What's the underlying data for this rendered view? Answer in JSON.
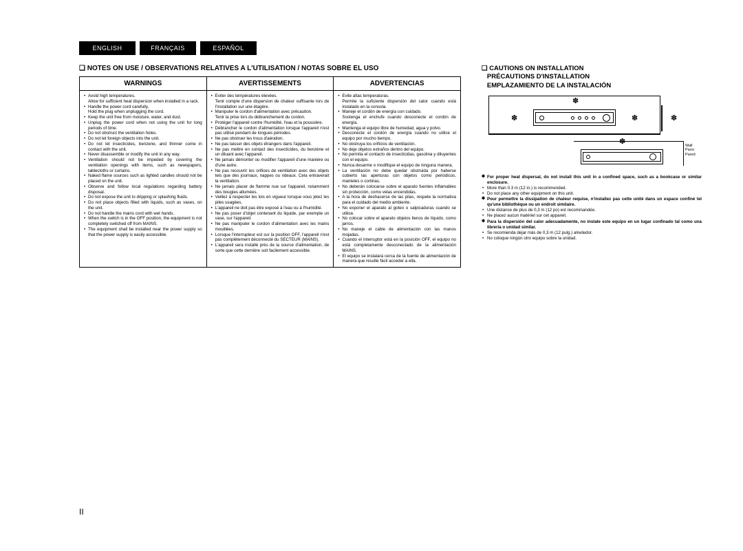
{
  "tabs": {
    "en": "ENGLISH",
    "fr": "FRANÇAIS",
    "es": "ESPAÑOL"
  },
  "notes_title": "NOTES ON USE / OBSERVATIONS RELATIVES A L'UTILISATION / NOTAS SOBRE EL USO",
  "headers": {
    "en": "WARNINGS",
    "fr": "AVERTISSEMENTS",
    "es": "ADVERTENCIAS"
  },
  "warnings_en": [
    "Avoid high temperatures.",
    "Allow for sufficient heat dispersion when installed in a rack.",
    "Handle the power cord carefully.",
    "Hold the plug when unplugging the cord.",
    "Keep the unit free from moisture, water, and dust.",
    "Unplug the power cord when not using the unit for long periods of time.",
    "Do not obstruct the ventilation holes.",
    "Do not let foreign objects into the unit.",
    "Do not let insecticides, benzene, and thinner come in contact with the unit.",
    "Never disassemble or modify the unit in any way.",
    "Ventilation should not be impeded by covering the ventilation openings with items, such as newspapers, tablecloths or curtains.",
    "Naked flame sources such as lighted candles should not be placed on the unit.",
    "Observe and follow local regulations regarding battery disposal.",
    "Do not expose the unit to dripping or splashing fluids.",
    "Do not place objects filled with liquids, such as vases, on the unit.",
    "Do not handle the mains cord with wet hands.",
    "When the switch is in the OFF position, the equipment is not completely switched off from MAINS.",
    "The equipment shall be installed near the power supply so that the power supply is easily accessible."
  ],
  "warnings_fr": [
    "Eviter des températures élevées.",
    "Tenir compte d'une dispersion de chaleur suffisante lors de l'installation sur une étagère.",
    "Manipuler le cordon d'alimentation avec précaution.",
    "Tenir la prise lors du débranchement du cordon.",
    "Protéger l'appareil contre l'humidité, l'eau et la poussière.",
    "Débrancher le cordon d'alimentation lorsque l'appareil n'est pas utilisé pendant de longues périodes.",
    "Ne pas obstruer les trous d'aération.",
    "Ne pas laisser des objets étrangers dans l'appareil.",
    "Ne pas mettre en contact des insecticides, du benzène et un diluant avec l'appareil.",
    "Ne jamais démonter ou modifier l'appareil d'une manière ou d'une autre.",
    "Ne pas recouvrir les orifices de ventilation avec des objets tels que des journaux, nappes ou rideaux. Cela entraverait la ventilation.",
    "Ne jamais placer de flamme nue sur l'appareil, notamment des bougies allumées.",
    "Veillez à respecter les lois en vigueur lorsque vous jetez les piles usagées.",
    "L'appareil ne doit pas être exposé à l'eau ou à l'humidité.",
    "Ne pas poser d'objet contenant du liquide, par exemple un vase, sur l'appareil.",
    "Ne pas manipuler le cordon d'alimentation avec les mains mouillées.",
    "Lorsque l'interrupteur est sur la position OFF, l'appareil n'est pas complètement déconnecté du SECTEUR (MAINS).",
    "L'appareil sera installé près de la source d'alimentation, de sorte que cette dernière soit facilement accessible."
  ],
  "warnings_es": [
    "Evite altas temperaturas.",
    "Permite la suficiente dispersión del calor cuando está instalado en la consola.",
    "Maneje el cordón de energía con cuidado.",
    "Sostenga el enchufe cuando desconecte el cordón de energía.",
    "Mantenga el equipo libre de humedad, agua y polvo.",
    "Desconecte el cordón de energía cuando no utilice el equipo por mucho tiempo.",
    "No obstruya los orificios de ventilación.",
    "No deje objetos extraños dentro del equipo.",
    "No permita el contacto de insecticidas, gasolina y diluyentes con el equipo.",
    "Nunca desarme o modifique el equipo de ninguna manera.",
    "La ventilación no debe quedar obstruida por haberse cubierto las aperturas con objetos como periódicos, manteles o cortinas.",
    "No deberán colocarse sobre el aparato fuentes inflamables sin protección, como velas encendidas.",
    "A la hora de deshacerse de las pilas, respete la normativa para el cuidado del medio ambiente.",
    "No exponer el aparato al goteo o salpicaduras cuando se utilice.",
    "No colocar sobre el aparato objetos llenos de líquido, como jarros.",
    "No maneje el cable de alimentación con las manos mojadas.",
    "Cuando el interruptor está en la posición OFF, el equipo no está completamente desconectado de la alimentación MAINS.",
    "El equipo se instalará cerca de la fuente de alimentación de manera que resulte fácil acceder a ella."
  ],
  "sub_en": {
    "1": true,
    "3": true
  },
  "sub_fr": {
    "1": true,
    "3": true
  },
  "sub_es": {
    "1": true,
    "3": true
  },
  "cautions_title_en": "CAUTIONS ON INSTALLATION",
  "cautions_title_fr": "PRÉCAUTIONS D'INSTALLATION",
  "cautions_title_es": "EMPLAZAMIENTO DE LA INSTALACIÓN",
  "diag_label": "Wall\nParoi\nPared",
  "cautions": [
    {
      "type": "star",
      "bold": true,
      "text": "For proper heat dispersal, do not install this unit in a confined space, such as a bookcase or similar enclosure."
    },
    {
      "type": "dot",
      "text": "More than 0.3 m (12 in.) is recommended."
    },
    {
      "type": "dot",
      "text": "Do not place any other equipment on this unit."
    },
    {
      "type": "star",
      "bold": true,
      "text": "Pour permettre la dissipation de chaleur requise, n'installez pas cette unité dans un espace confiné tel qu'une bibliothèque ou un endroit similaire."
    },
    {
      "type": "dot",
      "text": "Une distance de plus de 0,3 m (12 po) est recommandée."
    },
    {
      "type": "dot",
      "text": "Ne placez aucun matériel sur cet appareil."
    },
    {
      "type": "star",
      "bold": true,
      "text": "Para la dispersión del calor adecuadamente, no instale este equipo en un lugar confinado tal como una librería o unidad similar."
    },
    {
      "type": "dot",
      "text": "Se recomienda dejar más de 0,3 m (12 pulg.) alrededor."
    },
    {
      "type": "dot",
      "text": "No coloque ningún otro equipo sobre la unidad."
    }
  ],
  "page_num": "II"
}
